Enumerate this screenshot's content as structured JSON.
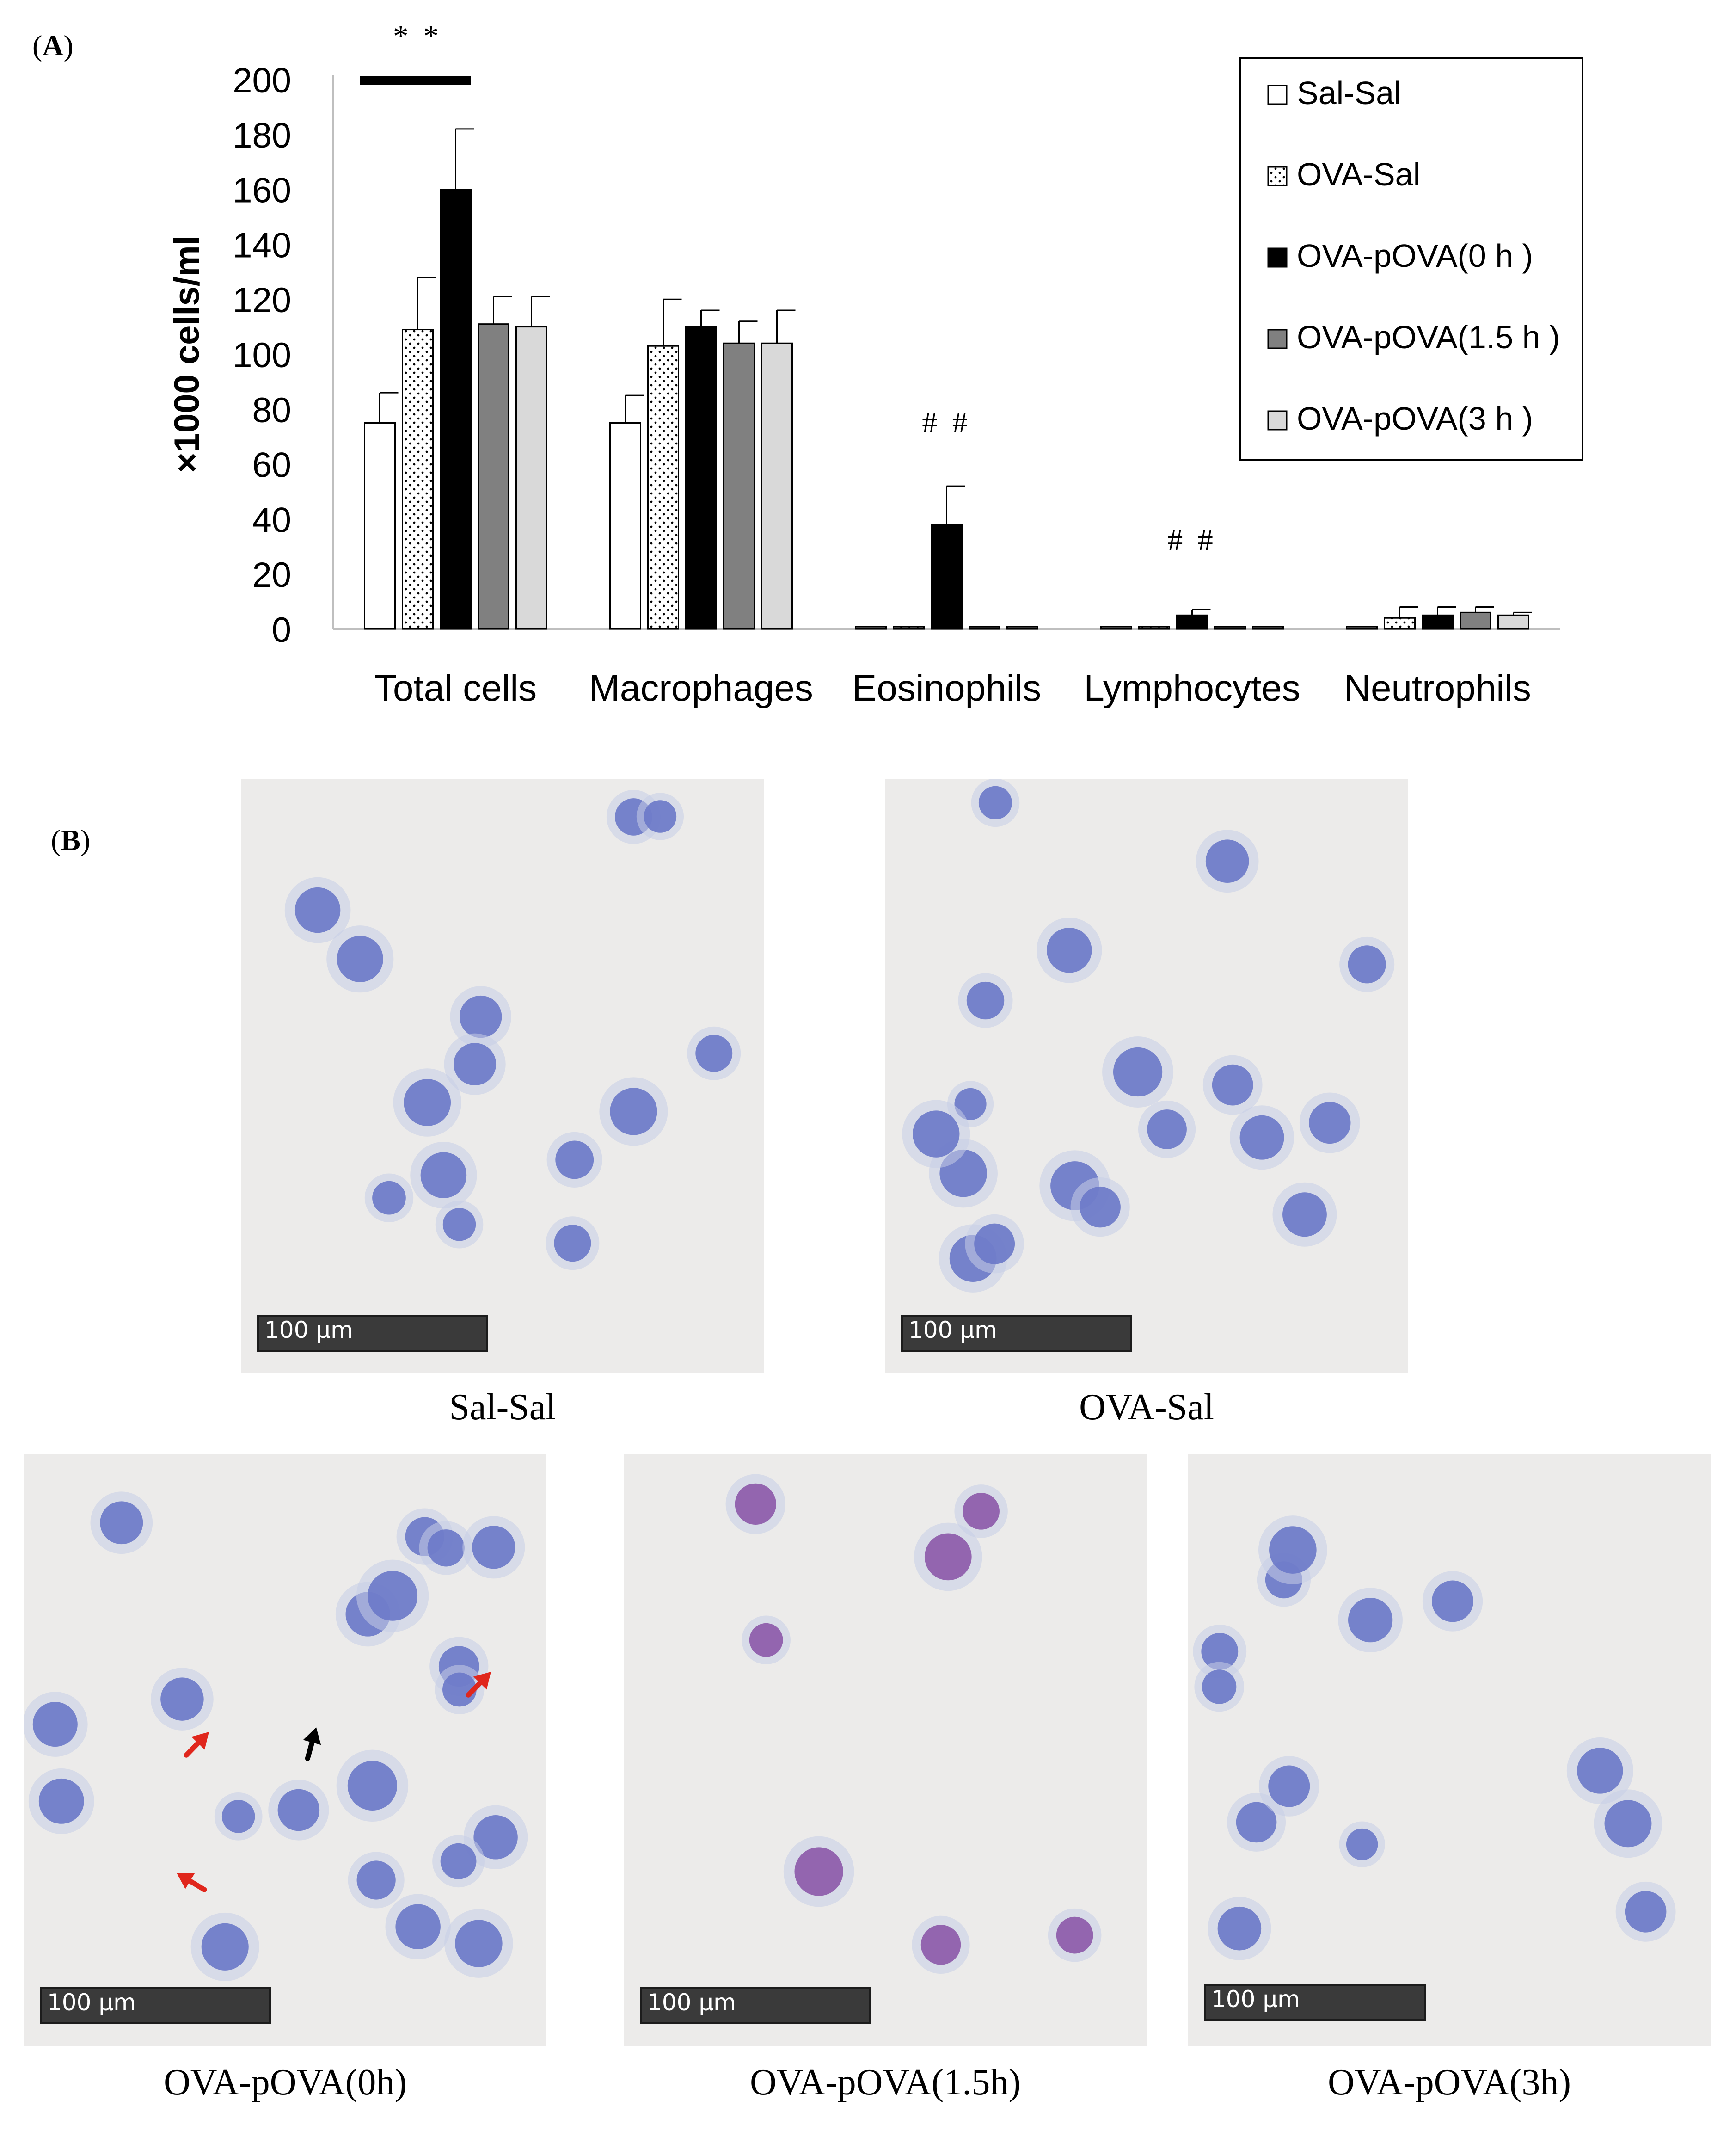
{
  "panel_a_label": {
    "open": "(",
    "letter": "A",
    "close": ")"
  },
  "panel_b_label": {
    "open": "(",
    "letter": "B",
    "close": ")"
  },
  "chart_data": {
    "type": "bar",
    "title": "",
    "xlabel": "",
    "ylabel": "×1000 cells/ml",
    "ylim": [
      0,
      200
    ],
    "yticks": [
      0,
      20,
      40,
      60,
      80,
      100,
      120,
      140,
      160,
      180,
      200
    ],
    "categories": [
      "Total cells",
      "Macrophages",
      "Eosinophils",
      "Lymphocytes",
      "Neutrophils"
    ],
    "series": [
      {
        "name": "Sal-Sal",
        "fill": "#ffffff",
        "pattern": "none",
        "values": [
          75,
          75,
          0.8,
          0.8,
          0.8
        ],
        "errors": [
          11,
          10,
          0,
          0,
          0
        ]
      },
      {
        "name": "OVA-Sal",
        "fill": "#ffffff",
        "pattern": "dots",
        "values": [
          109,
          103,
          0.8,
          0.8,
          4
        ],
        "errors": [
          19,
          17,
          0,
          0,
          4
        ]
      },
      {
        "name": "OVA-pOVA(0 h )",
        "fill": "#000000",
        "pattern": "none",
        "values": [
          160,
          110,
          38,
          5,
          5
        ],
        "errors": [
          22,
          6,
          14,
          2,
          3
        ]
      },
      {
        "name": "OVA-pOVA(1.5 h )",
        "fill": "#808080",
        "pattern": "none",
        "values": [
          111,
          104,
          0.8,
          0.8,
          6
        ],
        "errors": [
          10,
          8,
          0,
          0,
          2
        ]
      },
      {
        "name": "OVA-pOVA(3 h )",
        "fill": "#d9d9d9",
        "pattern": "none",
        "values": [
          110,
          104,
          0.8,
          0.8,
          5
        ],
        "errors": [
          11,
          12,
          0,
          0,
          1
        ]
      }
    ],
    "annotations": [
      {
        "text": "* *",
        "category": "Total cells",
        "kind": "significance-bar"
      },
      {
        "text": "# #",
        "category": "Eosinophils"
      },
      {
        "text": "# #",
        "category": "Lymphocytes"
      }
    ],
    "legend_position": "top-right",
    "grid": false
  },
  "micrographs": [
    {
      "caption": "Sal-Sal",
      "scale": "100 μm",
      "stain": "blue"
    },
    {
      "caption": "OVA-Sal",
      "scale": "100 μm",
      "stain": "blue"
    },
    {
      "caption": "OVA-pOVA(0h)",
      "scale": "100 μm",
      "stain": "blue"
    },
    {
      "caption": "OVA-pOVA(1.5h)",
      "scale": "100 μm",
      "stain": "purple"
    },
    {
      "caption": "OVA-pOVA(3h)",
      "scale": "100 μm",
      "stain": "blue"
    }
  ],
  "colors": {
    "cell_blue": "#6a78c8",
    "cell_purple": "#8c58a8",
    "arrow_red": "#e0261c",
    "arrow_black": "#000000",
    "background": "#ecebea"
  }
}
